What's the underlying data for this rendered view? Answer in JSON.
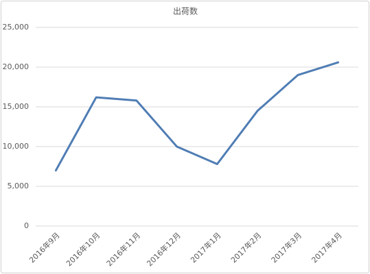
{
  "chart_data": {
    "type": "line",
    "title": "出荷数",
    "categories": [
      "2016年9月",
      "2016年10月",
      "2016年11月",
      "2016年12月",
      "2017年1月",
      "2017年2月",
      "2017年3月",
      "2017年4月"
    ],
    "values": [
      7000,
      16200,
      15800,
      10000,
      7800,
      14500,
      19000,
      20600
    ],
    "color": "#4f7db4",
    "ylim": [
      0,
      25000
    ],
    "yticks": [
      0,
      {
        "value": 5000,
        "label": "5,000"
      },
      {
        "value": 10000,
        "label": "10,000"
      },
      {
        "value": 15000,
        "label": "15,000"
      },
      {
        "value": 20000,
        "label": "20,000"
      },
      {
        "value": 25000,
        "label": "25,000"
      }
    ],
    "grid": true
  }
}
